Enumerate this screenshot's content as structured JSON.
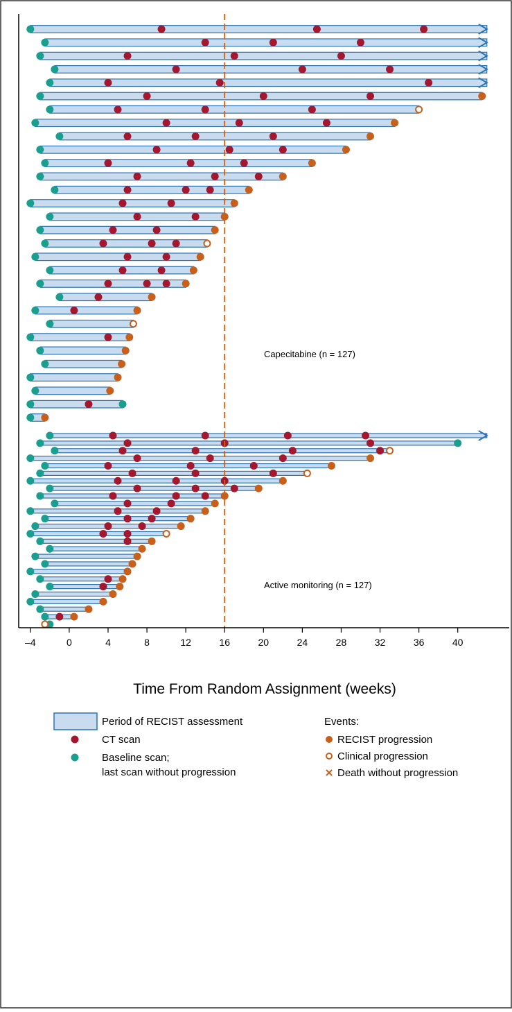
{
  "chart_data": {
    "type": "swimmer",
    "xlabel": "Time From Random Assignment (weeks)",
    "xlim": [
      -5.2,
      45.3
    ],
    "xticks": [
      {
        "value": -4,
        "label": "–4"
      },
      0,
      4,
      8,
      12,
      16,
      20,
      24,
      28,
      32,
      36,
      40
    ],
    "ref_line": 16,
    "colors": {
      "bar_fill": "#c9dcef",
      "bar_stroke": "#2a72b0",
      "scan": "#a3182f",
      "baseline": "#1a9e8f",
      "progression": "#c8601c"
    },
    "groups": [
      {
        "label": "Capecitabine (n = 127)",
        "rows": [
          {
            "start": -4,
            "end": 43,
            "scans": [
              9.5,
              25.5,
              36.5
            ],
            "event": "none",
            "ongoing": true
          },
          {
            "start": -2.5,
            "end": 43,
            "scans": [
              14,
              21,
              30
            ],
            "event": "none",
            "ongoing": true
          },
          {
            "start": -3,
            "end": 43,
            "scans": [
              6,
              17,
              28
            ],
            "event": "none",
            "ongoing": true
          },
          {
            "start": -1.5,
            "end": 43,
            "scans": [
              11,
              24,
              33
            ],
            "event": "none",
            "ongoing": true
          },
          {
            "start": -2,
            "end": 43,
            "scans": [
              4,
              15.5,
              37
            ],
            "event": "none",
            "ongoing": true
          },
          {
            "start": -3,
            "end": 42.5,
            "scans": [
              8,
              20,
              31
            ],
            "event": "recist",
            "ongoing": false
          },
          {
            "start": -2,
            "end": 36,
            "scans": [
              5,
              14,
              25
            ],
            "event": "clinical",
            "ongoing": false
          },
          {
            "start": -3.5,
            "end": 33.5,
            "scans": [
              10,
              17.5,
              26.5
            ],
            "event": "recist",
            "ongoing": false
          },
          {
            "start": -1,
            "end": 31,
            "scans": [
              6,
              13,
              21
            ],
            "event": "recist",
            "ongoing": false
          },
          {
            "start": -3,
            "end": 28.5,
            "scans": [
              9,
              16.5,
              22
            ],
            "event": "recist",
            "ongoing": false
          },
          {
            "start": -2.5,
            "end": 25,
            "scans": [
              4,
              12.5,
              18
            ],
            "event": "recist",
            "ongoing": false
          },
          {
            "start": -3,
            "end": 22,
            "scans": [
              7,
              15,
              19.5
            ],
            "event": "recist",
            "ongoing": false
          },
          {
            "start": -1.5,
            "end": 18.5,
            "scans": [
              6,
              12,
              14.5
            ],
            "event": "recist",
            "ongoing": false
          },
          {
            "start": -4,
            "end": 17,
            "scans": [
              5.5,
              10.5
            ],
            "event": "recist",
            "ongoing": false
          },
          {
            "start": -2,
            "end": 16,
            "scans": [
              7,
              13
            ],
            "event": "recist",
            "ongoing": false
          },
          {
            "start": -3,
            "end": 15,
            "scans": [
              4.5,
              9
            ],
            "event": "recist",
            "ongoing": false
          },
          {
            "start": -2.5,
            "end": 14.2,
            "scans": [
              3.5,
              8.5,
              11
            ],
            "event": "clinical",
            "ongoing": false
          },
          {
            "start": -3.5,
            "end": 13.5,
            "scans": [
              6,
              10
            ],
            "event": "recist",
            "ongoing": false
          },
          {
            "start": -2,
            "end": 12.8,
            "scans": [
              5.5,
              9.5
            ],
            "event": "recist",
            "ongoing": false
          },
          {
            "start": -3,
            "end": 12,
            "scans": [
              4,
              8,
              10
            ],
            "event": "recist",
            "ongoing": false
          },
          {
            "start": -1,
            "end": 8.5,
            "scans": [
              3
            ],
            "event": "recist",
            "ongoing": false
          },
          {
            "start": -3.5,
            "end": 7,
            "scans": [
              0.5
            ],
            "event": "recist",
            "ongoing": false
          },
          {
            "start": -2,
            "end": 6.6,
            "scans": [],
            "event": "clinical",
            "ongoing": false
          },
          {
            "start": -4,
            "end": 6.2,
            "scans": [
              4
            ],
            "event": "recist",
            "ongoing": false
          },
          {
            "start": -3,
            "end": 5.8,
            "scans": [],
            "event": "recist",
            "ongoing": false
          },
          {
            "start": -2.5,
            "end": 5.4,
            "scans": [],
            "event": "recist",
            "ongoing": false
          },
          {
            "start": -4,
            "end": 5,
            "scans": [],
            "event": "recist",
            "ongoing": false
          },
          {
            "start": -3.5,
            "end": 4.2,
            "scans": [],
            "event": "recist",
            "ongoing": false
          },
          {
            "start": -4,
            "end": 5.5,
            "scans": [
              2
            ],
            "event": "none",
            "ongoing": false
          },
          {
            "start": -4,
            "end": -2.5,
            "scans": [],
            "event": "recist",
            "ongoing": false
          }
        ]
      },
      {
        "label": "Active monitoring (n = 127)",
        "rows": [
          {
            "start": -2,
            "end": 43,
            "scans": [
              4.5,
              14,
              22.5,
              30.5
            ],
            "event": "none",
            "ongoing": true
          },
          {
            "start": -3,
            "end": 40,
            "scans": [
              6,
              16,
              31
            ],
            "event": "none",
            "ongoing": false
          },
          {
            "start": -1.5,
            "end": 33,
            "scans": [
              5.5,
              13,
              23,
              32
            ],
            "event": "clinical",
            "ongoing": false
          },
          {
            "start": -4,
            "end": 31,
            "scans": [
              7,
              14.5,
              22
            ],
            "event": "recist",
            "ongoing": false
          },
          {
            "start": -2.5,
            "end": 27,
            "scans": [
              4,
              12.5,
              19
            ],
            "event": "recist",
            "ongoing": false
          },
          {
            "start": -3,
            "end": 24.5,
            "scans": [
              6.5,
              13,
              21
            ],
            "event": "clinical",
            "ongoing": false
          },
          {
            "start": -4,
            "end": 22,
            "scans": [
              5,
              11,
              16
            ],
            "event": "recist",
            "ongoing": false
          },
          {
            "start": -2,
            "end": 19.5,
            "scans": [
              7,
              13,
              17
            ],
            "event": "recist",
            "ongoing": false
          },
          {
            "start": -3,
            "end": 16,
            "scans": [
              4.5,
              11,
              14
            ],
            "event": "recist",
            "ongoing": false
          },
          {
            "start": -1.5,
            "end": 15,
            "scans": [
              6,
              10.5
            ],
            "event": "recist",
            "ongoing": false
          },
          {
            "start": -4,
            "end": 14,
            "scans": [
              5,
              9
            ],
            "event": "recist",
            "ongoing": false
          },
          {
            "start": -2.5,
            "end": 12.5,
            "scans": [
              6,
              8.5
            ],
            "event": "recist",
            "ongoing": false
          },
          {
            "start": -3.5,
            "end": 11.5,
            "scans": [
              4,
              7.5
            ],
            "event": "recist",
            "ongoing": false
          },
          {
            "start": -4,
            "end": 10,
            "scans": [
              3.5,
              6
            ],
            "event": "clinical",
            "ongoing": false
          },
          {
            "start": -3,
            "end": 8.5,
            "scans": [
              6
            ],
            "event": "recist",
            "ongoing": false
          },
          {
            "start": -2,
            "end": 7.5,
            "scans": [],
            "event": "recist",
            "ongoing": false
          },
          {
            "start": -3.5,
            "end": 7,
            "scans": [],
            "event": "recist",
            "ongoing": false
          },
          {
            "start": -2.5,
            "end": 6.5,
            "scans": [],
            "event": "recist",
            "ongoing": false
          },
          {
            "start": -4,
            "end": 6,
            "scans": [],
            "event": "recist",
            "ongoing": false
          },
          {
            "start": -3,
            "end": 5.5,
            "scans": [
              4
            ],
            "event": "recist",
            "ongoing": false
          },
          {
            "start": -2,
            "end": 5.2,
            "scans": [
              3.5
            ],
            "event": "recist",
            "ongoing": false
          },
          {
            "start": -3.5,
            "end": 4.5,
            "scans": [],
            "event": "recist",
            "ongoing": false
          },
          {
            "start": -4,
            "end": 3.5,
            "scans": [],
            "event": "recist",
            "ongoing": false
          },
          {
            "start": -3,
            "end": 2,
            "scans": [],
            "event": "recist",
            "ongoing": false
          },
          {
            "start": -2.5,
            "end": 0.5,
            "scans": [
              -1
            ],
            "event": "recist",
            "ongoing": false
          },
          {
            "start": -2,
            "end": -2.5,
            "scans": [],
            "event": "clinical",
            "ongoing": false
          }
        ]
      }
    ],
    "legend": {
      "period": "Period of RECIST assessment",
      "ct": "CT scan",
      "baseline": [
        "Baseline scan;",
        "last scan without progression"
      ],
      "events_title": "Events:",
      "recist": "RECIST progression",
      "clinical": "Clinical  progression",
      "death": "Death without progression"
    }
  }
}
